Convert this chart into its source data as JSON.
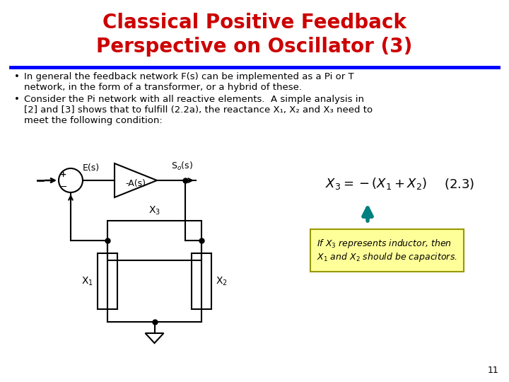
{
  "title_line1": "Classical Positive Feedback",
  "title_line2": "Perspective on Oscillator (3)",
  "title_color": "#CC0000",
  "title_fontsize": 20,
  "divider_color": "#0000FF",
  "bullet1_line1": "In general the feedback network F(s) can be implemented as a Pi or T",
  "bullet1_line2": "network, in the form of a transformer, or a hybrid of these.",
  "bullet2_line1": "Consider the Pi network with all reactive elements.  A simple analysis in",
  "bullet2_line2": "[2] and [3] shows that to fulfill (2.2a), the reactance X₁, X₂ and X₃ need to",
  "bullet2_line3": "meet the following condition:",
  "text_fontsize": 9.5,
  "note_bg": "#FFFF99",
  "note_border": "#999900",
  "arrow_color": "#008080",
  "page_num": "11",
  "bg_color": "#FFFFFF"
}
